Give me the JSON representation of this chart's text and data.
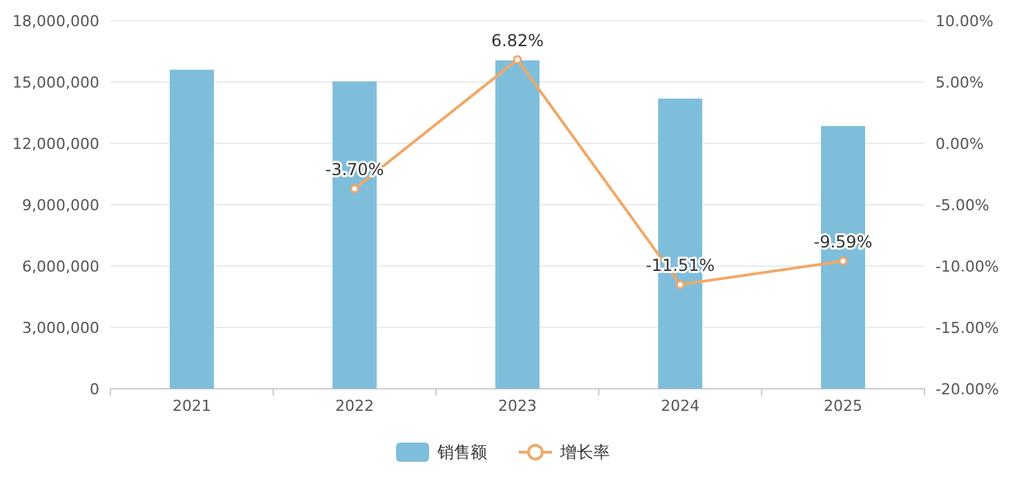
{
  "chart_data": {
    "type": "bar",
    "categories": [
      "2021",
      "2022",
      "2023",
      "2024",
      "2025"
    ],
    "series": [
      {
        "name": "销售额",
        "color": "#7fbedb",
        "values": [
          15600000,
          15030000,
          16060000,
          14190000,
          12850000
        ]
      },
      {
        "name": "增长率",
        "type": "line",
        "axis": "y2",
        "color": "#f0a868",
        "marker": "circle",
        "values": [
          null,
          -3.7,
          6.82,
          -11.51,
          -9.59
        ],
        "value_labels": [
          null,
          "-3.70%",
          "6.82%",
          "-11.51%",
          "-9.59%"
        ]
      }
    ],
    "ylim": [
      0,
      18000000
    ],
    "yticks": [
      {
        "value": 0,
        "label": "0"
      },
      {
        "value": 3000000,
        "label": "3,000,000"
      },
      {
        "value": 6000000,
        "label": "6,000,000"
      },
      {
        "value": 9000000,
        "label": "9,000,000"
      },
      {
        "value": 12000000,
        "label": "12,000,000"
      },
      {
        "value": 15000000,
        "label": "15,000,000"
      },
      {
        "value": 18000000,
        "label": "18,000,000"
      }
    ],
    "y2lim": [
      -20,
      10
    ],
    "y2ticks": [
      {
        "value": -20,
        "label": "-20.00%"
      },
      {
        "value": -15,
        "label": "-15.00%"
      },
      {
        "value": -10,
        "label": "-10.00%"
      },
      {
        "value": -5,
        "label": "-5.00%"
      },
      {
        "value": 0,
        "label": "0.00%"
      },
      {
        "value": 5,
        "label": "5.00%"
      },
      {
        "value": 10,
        "label": "10.00%"
      }
    ],
    "grid": "y",
    "legend": "bottom"
  }
}
